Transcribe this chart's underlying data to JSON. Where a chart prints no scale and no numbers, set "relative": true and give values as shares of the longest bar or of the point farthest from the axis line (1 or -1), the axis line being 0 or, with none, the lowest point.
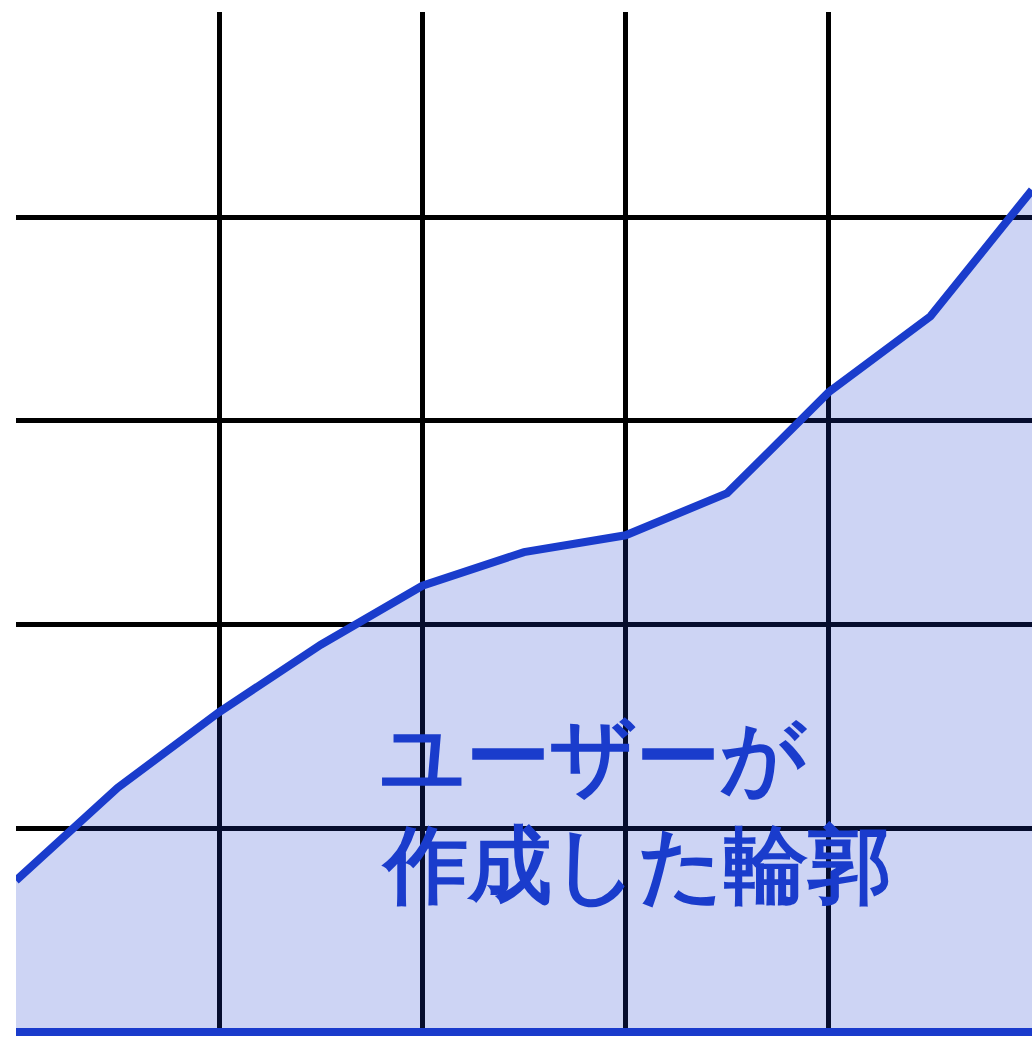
{
  "chart_data": {
    "type": "area",
    "relative": true,
    "categories": [
      null,
      null,
      null,
      null,
      null,
      null,
      null,
      null,
      null,
      null,
      null
    ],
    "series": [
      {
        "color": "#1a3ccc",
        "values": [
          0.18,
          0.29,
          0.38,
          0.46,
          0.53,
          0.57,
          0.59,
          0.64,
          0.76,
          0.85,
          1.0
        ]
      }
    ],
    "grid": true,
    "annotations": [
      "ユーザーが",
      "作成した輪郭"
    ]
  }
}
